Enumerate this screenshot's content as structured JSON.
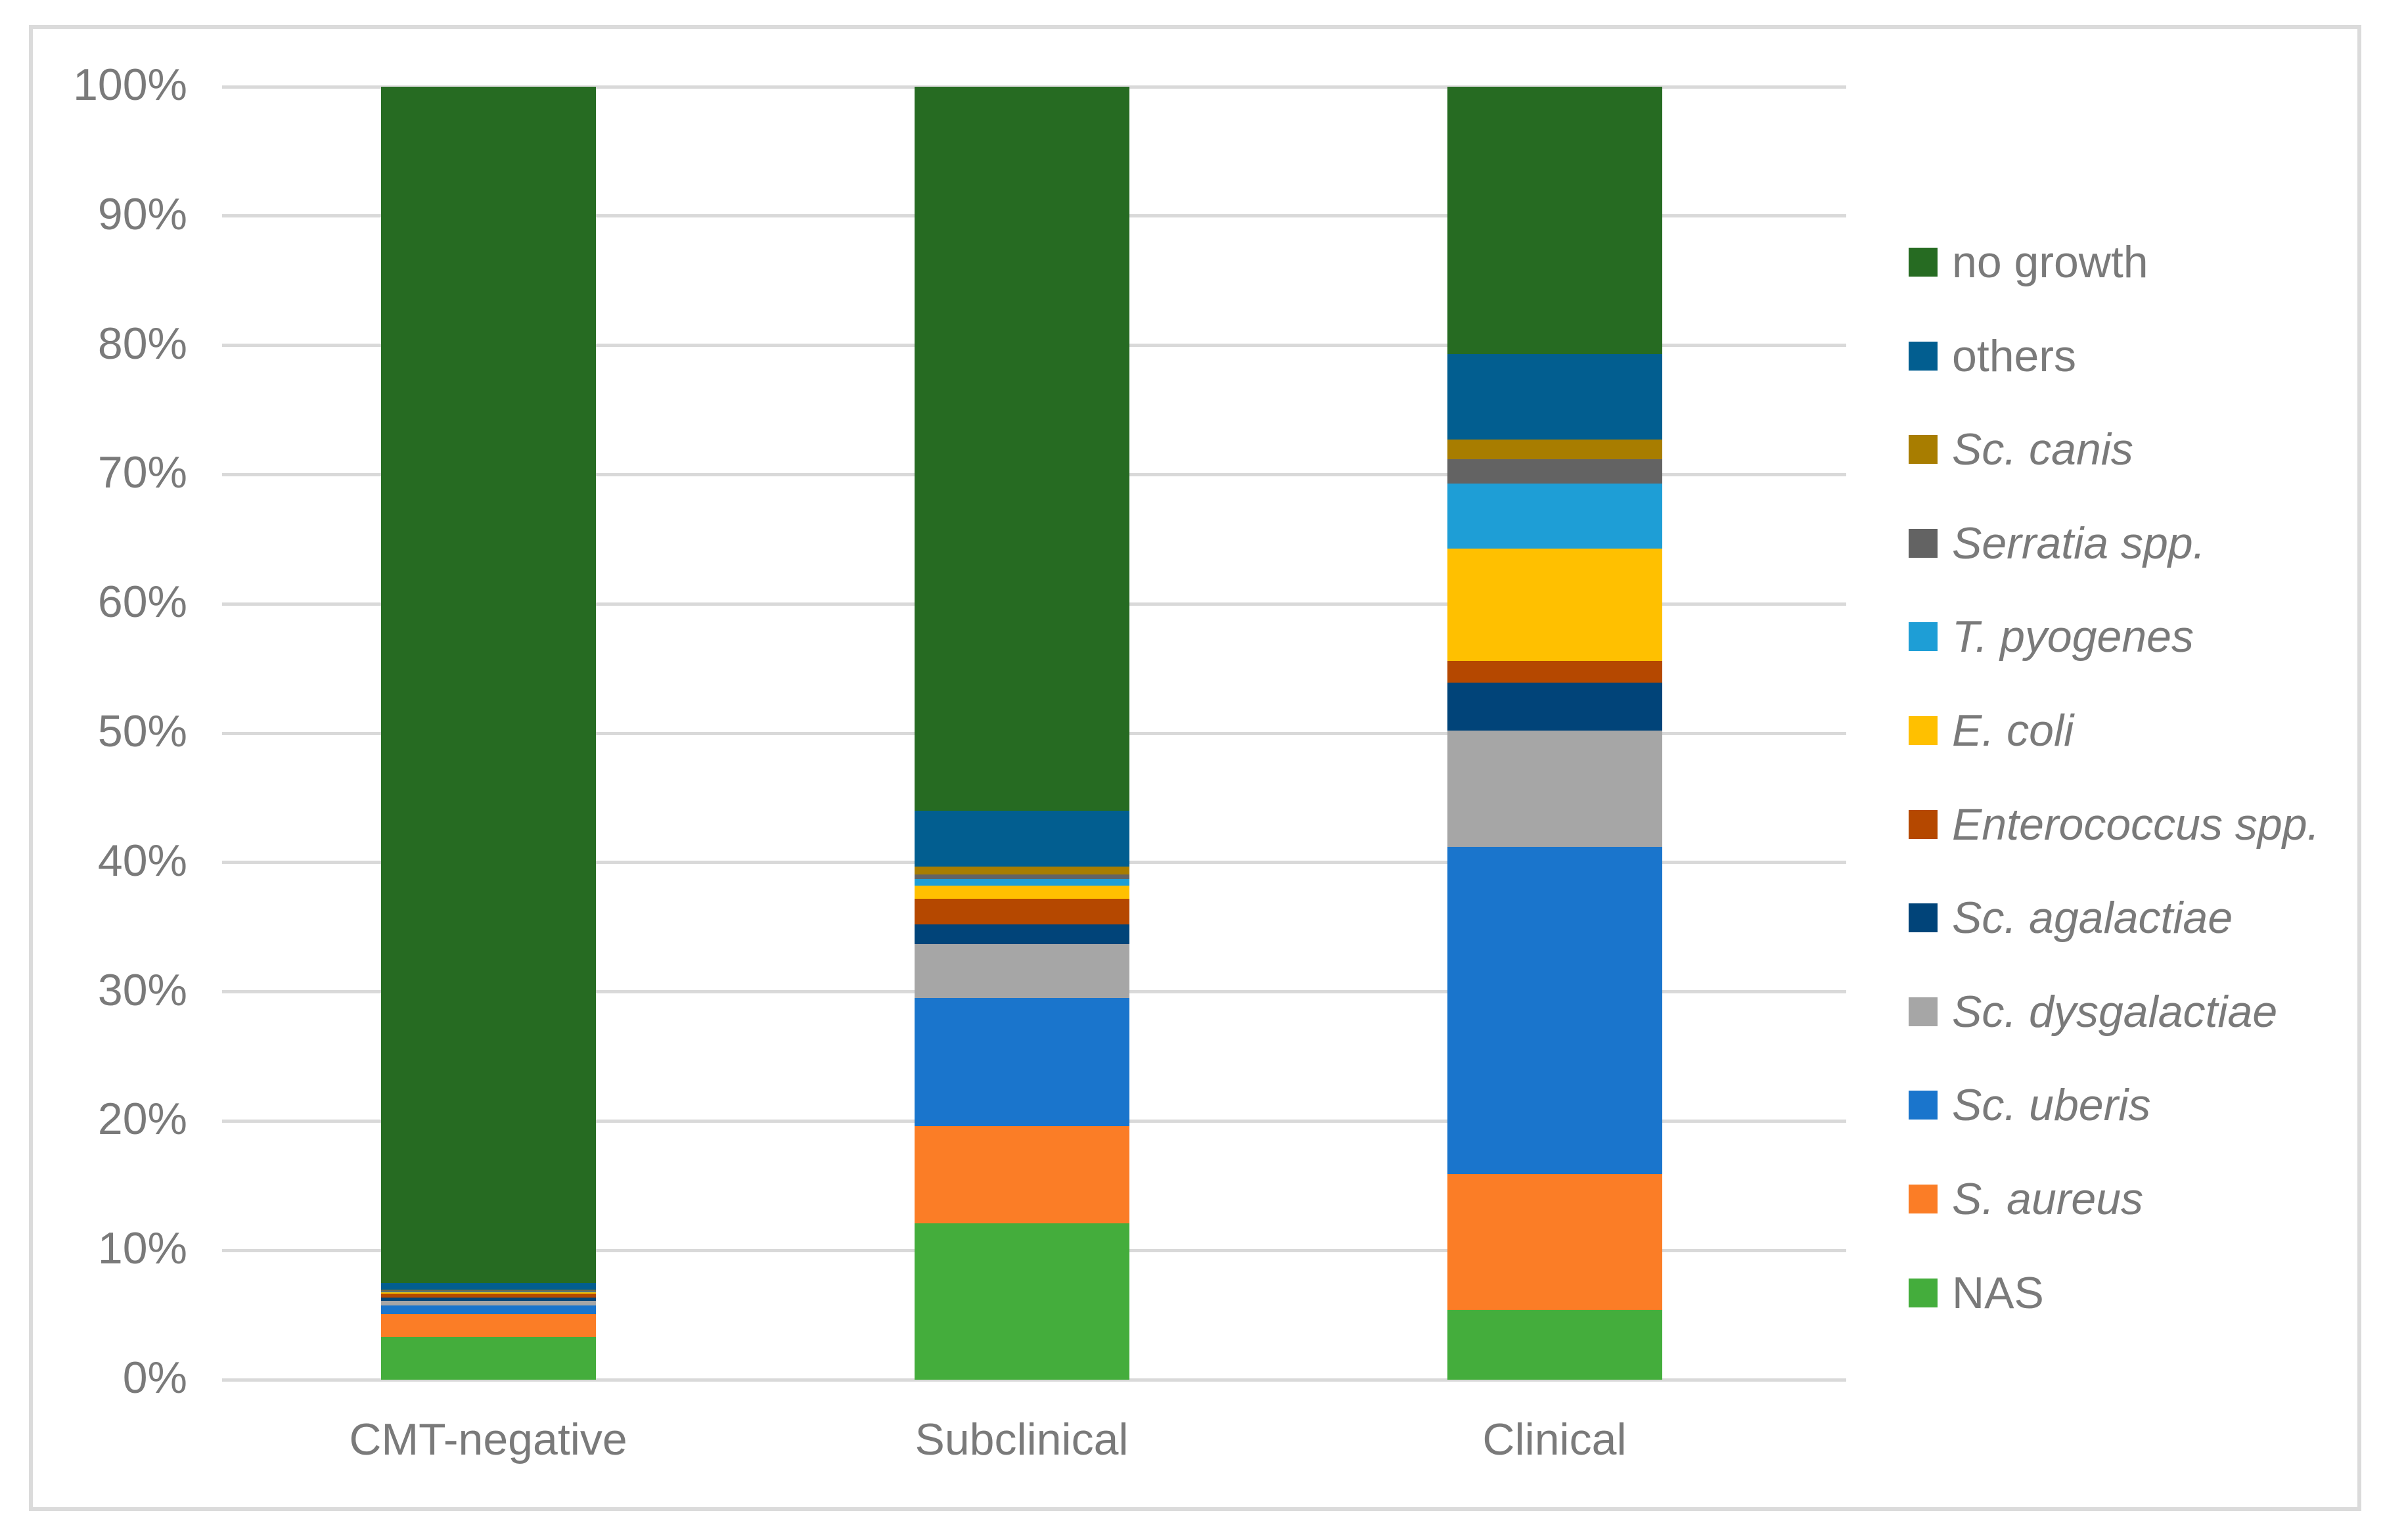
{
  "figure": {
    "background": "#ffffff",
    "frame_color": "#dbdbdb",
    "grid_color": "#d9d9d9",
    "text_color": "#7a7a7a"
  },
  "chart_data": {
    "type": "bar",
    "stacked": true,
    "grid": true,
    "legend_position": "right",
    "ylim": [
      0,
      100
    ],
    "yticks": [
      "0%",
      "10%",
      "20%",
      "30%",
      "40%",
      "50%",
      "60%",
      "70%",
      "80%",
      "90%",
      "100%"
    ],
    "categories": [
      "CMT-negative",
      "Subclinical",
      "Clinical"
    ],
    "series_bottom_to_top": true,
    "series": [
      {
        "name": "NAS",
        "italic": false,
        "color": "#44ad3c",
        "values": [
          3.3,
          12.1,
          5.4
        ]
      },
      {
        "name": "S. aureus",
        "italic": true,
        "color": "#fb7d26",
        "values": [
          1.8,
          7.5,
          10.5
        ]
      },
      {
        "name": "Sc. uberis",
        "italic": true,
        "color": "#1a75cc",
        "values": [
          0.65,
          9.9,
          25.3
        ]
      },
      {
        "name": "Sc. dysgalactiae",
        "italic": true,
        "color": "#a6a6a6",
        "values": [
          0.35,
          4.2,
          9.0
        ]
      },
      {
        "name": "Sc. agalactiae",
        "italic": true,
        "color": "#014479",
        "values": [
          0.25,
          1.5,
          3.7
        ]
      },
      {
        "name": "Enterococcus spp.",
        "italic": true,
        "color": "#b54800",
        "values": [
          0.3,
          2.0,
          1.7
        ]
      },
      {
        "name": "E. coli",
        "italic": true,
        "color": "#ffc000",
        "values": [
          0.1,
          1.0,
          8.7
        ]
      },
      {
        "name": "T. pyogenes",
        "italic": true,
        "color": "#1e9ed6",
        "values": [
          0.05,
          0.5,
          5.0
        ]
      },
      {
        "name": "Serratia spp.",
        "italic": true,
        "color": "#636363",
        "values": [
          0.1,
          0.4,
          1.9
        ]
      },
      {
        "name": "Sc. canis",
        "italic": true,
        "color": "#a87d00",
        "values": [
          0.05,
          0.6,
          1.5
        ]
      },
      {
        "name": "others",
        "italic": false,
        "color": "#025e90",
        "values": [
          0.5,
          4.3,
          6.6
        ]
      },
      {
        "name": "no growth",
        "italic": false,
        "color": "#266b22",
        "values": [
          92.55,
          56.0,
          20.7
        ]
      }
    ],
    "legend_order_top_to_bottom": [
      "no growth",
      "others",
      "Sc. canis",
      "Serratia spp.",
      "T. pyogenes",
      "E. coli",
      "Enterococcus spp.",
      "Sc. agalactiae",
      "Sc. dysgalactiae",
      "Sc. uberis",
      "S. aureus",
      "NAS"
    ]
  }
}
